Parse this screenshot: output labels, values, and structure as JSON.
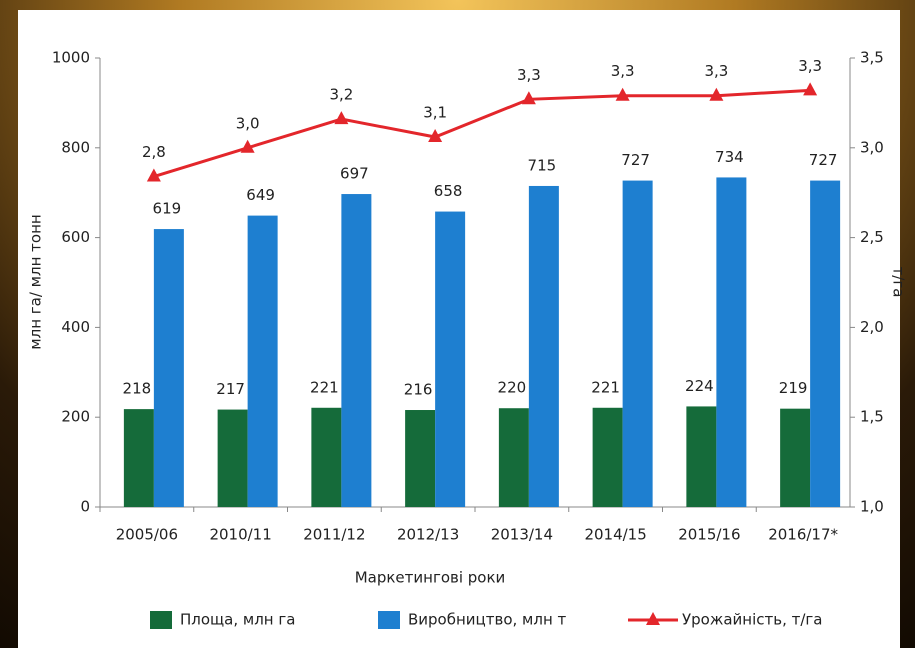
{
  "chart_data": {
    "type": "bar-line",
    "x_label": "Маркетингові роки",
    "y_label": "млн га/ млн тонн",
    "y2_label": "т/га",
    "categories": [
      "2005/06",
      "2010/11",
      "2011/12",
      "2012/13",
      "2013/14",
      "2014/15",
      "2015/16",
      "2016/17*"
    ],
    "series": [
      {
        "name": "Площа, млн га",
        "color": "#156b3a",
        "type": "bar",
        "values": [
          218,
          217,
          221,
          216,
          220,
          221,
          224,
          219
        ]
      },
      {
        "name": "Виробництво, млн т",
        "color": "#1e7fd0",
        "type": "bar",
        "values": [
          619,
          649,
          697,
          658,
          715,
          727,
          734,
          727
        ]
      },
      {
        "name": "Урожайність, т/га",
        "color": "#e3262b",
        "type": "line",
        "axis": "y2",
        "values": [
          2.84,
          3.0,
          3.16,
          3.06,
          3.27,
          3.29,
          3.29,
          3.32
        ],
        "value_labels": [
          "2,8",
          "3,0",
          "3,2",
          "3,1",
          "3,3",
          "3,3",
          "3,3",
          "3,3"
        ]
      }
    ],
    "ylim": [
      0,
      1000
    ],
    "yticks": [
      0,
      200,
      400,
      600,
      800,
      1000
    ],
    "y2lim": [
      1,
      3.5
    ],
    "y2ticks": [
      {
        "value": 1,
        "label": "1,0"
      },
      {
        "value": 1.5,
        "label": "1,5"
      },
      {
        "value": 2,
        "label": "2,0"
      },
      {
        "value": 2.5,
        "label": "2,5"
      },
      {
        "value": 3,
        "label": "3,0"
      },
      {
        "value": 3.5,
        "label": "3,5"
      }
    ],
    "grid": false,
    "legend": "bottom"
  }
}
